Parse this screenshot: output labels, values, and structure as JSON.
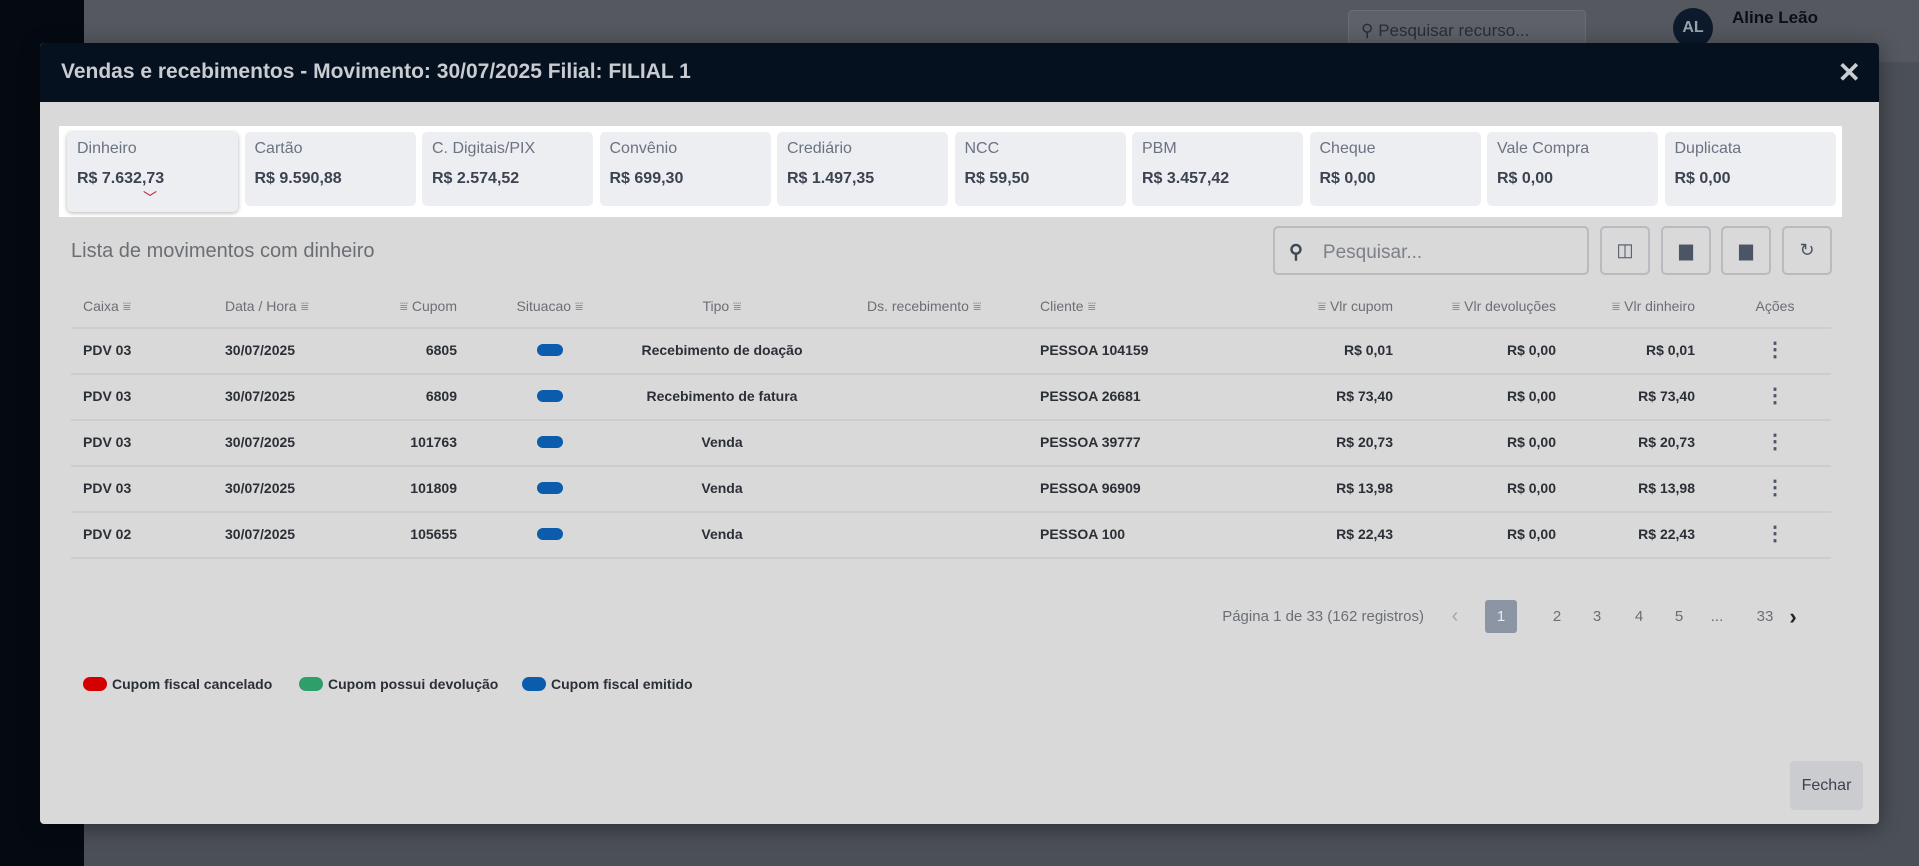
{
  "background": {
    "search_placeholder": "Pesquisar recurso...",
    "avatar_initials": "AL",
    "user_name": "Aline Leão"
  },
  "modal": {
    "title": "Vendas e recebimentos - Movimento: 30/07/2025 Filial: FILIAL 1",
    "close_icon": "close-icon"
  },
  "cards": [
    {
      "label": "Dinheiro",
      "value": "R$ 7.632,73",
      "selected": true
    },
    {
      "label": "Cartão",
      "value": "R$ 9.590,88"
    },
    {
      "label": "C. Digitais/PIX",
      "value": "R$ 2.574,52"
    },
    {
      "label": "Convênio",
      "value": "R$ 699,30"
    },
    {
      "label": "Crediário",
      "value": "R$ 1.497,35"
    },
    {
      "label": "NCC",
      "value": "R$ 59,50"
    },
    {
      "label": "PBM",
      "value": "R$ 3.457,42"
    },
    {
      "label": "Cheque",
      "value": "R$ 0,00"
    },
    {
      "label": "Vale Compra",
      "value": "R$ 0,00"
    },
    {
      "label": "Duplicata",
      "value": "R$ 0,00"
    }
  ],
  "list": {
    "title": "Lista de movimentos com dinheiro",
    "search_placeholder": "Pesquisar..."
  },
  "columns": [
    "Caixa",
    "Data / Hora",
    "Cupom",
    "Situacao",
    "Tipo",
    "Ds. recebimento",
    "Cliente",
    "Vlr cupom",
    "Vlr devoluções",
    "Vlr dinheiro",
    "Ações"
  ],
  "rows": [
    {
      "caixa": "PDV 03",
      "data": "30/07/2025",
      "cupom": "6805",
      "situacao": "Cupom fiscal emitido",
      "tipo": "Recebimento de doação",
      "ds": "",
      "cliente": "PESSOA 104159",
      "vlr_cupom": "R$ 0,01",
      "vlr_dev": "R$ 0,00",
      "vlr_din": "R$ 0,01"
    },
    {
      "caixa": "PDV 03",
      "data": "30/07/2025",
      "cupom": "6809",
      "situacao": "Cupom fiscal emitido",
      "tipo": "Recebimento de fatura",
      "ds": "",
      "cliente": "PESSOA 26681",
      "vlr_cupom": "R$ 73,40",
      "vlr_dev": "R$ 0,00",
      "vlr_din": "R$ 73,40"
    },
    {
      "caixa": "PDV 03",
      "data": "30/07/2025",
      "cupom": "101763",
      "situacao": "Cupom fiscal emitido",
      "tipo": "Venda",
      "ds": "",
      "cliente": "PESSOA 39777",
      "vlr_cupom": "R$ 20,73",
      "vlr_dev": "R$ 0,00",
      "vlr_din": "R$ 20,73"
    },
    {
      "caixa": "PDV 03",
      "data": "30/07/2025",
      "cupom": "101809",
      "situacao": "Cupom fiscal emitido",
      "tipo": "Venda",
      "ds": "",
      "cliente": "PESSOA 96909",
      "vlr_cupom": "R$ 13,98",
      "vlr_dev": "R$ 0,00",
      "vlr_din": "R$ 13,98"
    },
    {
      "caixa": "PDV 02",
      "data": "30/07/2025",
      "cupom": "105655",
      "situacao": "Cupom fiscal emitido",
      "tipo": "Venda",
      "ds": "",
      "cliente": "PESSOA 100",
      "vlr_cupom": "R$ 22,43",
      "vlr_dev": "R$ 0,00",
      "vlr_din": "R$ 22,43"
    }
  ],
  "pagination": {
    "summary": "Página 1 de 33 (162 registros)",
    "pages": [
      "1",
      "2",
      "3",
      "4",
      "5",
      "...",
      "33"
    ],
    "current": "1"
  },
  "legend": [
    {
      "label": "Cupom fiscal cancelado",
      "color": "#d40000"
    },
    {
      "label": "Cupom possui devolução",
      "color": "#2e9e6a"
    },
    {
      "label": "Cupom fiscal emitido",
      "color": "#0b5cad"
    }
  ],
  "footer": {
    "close_label": "Fechar"
  }
}
